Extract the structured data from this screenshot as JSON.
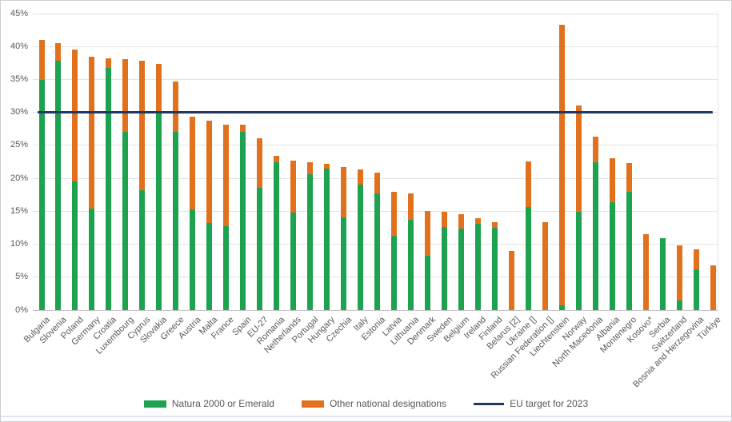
{
  "chart_data": {
    "type": "bar",
    "subtype": "stacked",
    "title": "",
    "categories": [
      "Bulgaria",
      "Slovenia",
      "Poland",
      "Germany",
      "Croatia",
      "Luxembourg",
      "Cyprus",
      "Slovakia",
      "Greece",
      "Austria",
      "Malta",
      "France",
      "Spain",
      "EU-27",
      "Romania",
      "Netherlands",
      "Portugal",
      "Hungary",
      "Czechia",
      "Italy",
      "Estonia",
      "Latvia",
      "Lithuania",
      "Denmark",
      "Sweden",
      "Belgium",
      "Ireland",
      "Finland",
      "Belarus [2]",
      "Ukraine []",
      "Russian Federation []",
      "Liechtenstein",
      "Norway",
      "North Macedonia",
      "Albania",
      "Montenegro",
      "Kosovo*",
      "Serbia",
      "Switzerland",
      "Bosnia and Herzegovina",
      "Türkiye"
    ],
    "series": [
      {
        "name": "Natura 2000 or Emerald",
        "color": "#1da350",
        "values": [
          34.9,
          37.9,
          19.5,
          15.4,
          36.7,
          27.0,
          18.2,
          30.0,
          27.1,
          15.3,
          13.2,
          12.7,
          27.0,
          18.5,
          22.4,
          14.8,
          20.6,
          21.5,
          14.1,
          19.0,
          17.7,
          11.3,
          13.7,
          8.3,
          12.6,
          12.4,
          13.1,
          12.5,
          0,
          15.7,
          0,
          0.7,
          14.9,
          22.4,
          16.4,
          17.9,
          0,
          10.9,
          1.4,
          6.2,
          0
        ]
      },
      {
        "name": "Other national designations",
        "color": "#e2711e",
        "values": [
          6.1,
          2.6,
          20.1,
          23.1,
          1.5,
          11.1,
          19.7,
          7.4,
          7.6,
          14.0,
          15.5,
          15.4,
          1.2,
          7.6,
          1.0,
          7.9,
          1.9,
          0.7,
          7.6,
          2.3,
          3.2,
          6.7,
          4.0,
          6.7,
          2.3,
          2.2,
          0.8,
          0.9,
          9.0,
          6.9,
          13.4,
          42.6,
          16.2,
          3.9,
          6.6,
          4.4,
          11.5,
          0,
          8.4,
          3.0,
          6.8
        ]
      }
    ],
    "target_line": {
      "label": "EU target for 2023",
      "value": 30,
      "color": "#1f3864"
    },
    "xlabel": "",
    "ylabel": "",
    "ylim": [
      0,
      45
    ],
    "ytick_step": 5,
    "yticks": [
      "0%",
      "5%",
      "10%",
      "15%",
      "20%",
      "25%",
      "30%",
      "35%",
      "40%",
      "45%"
    ],
    "grid": true,
    "legend_position": "bottom"
  }
}
